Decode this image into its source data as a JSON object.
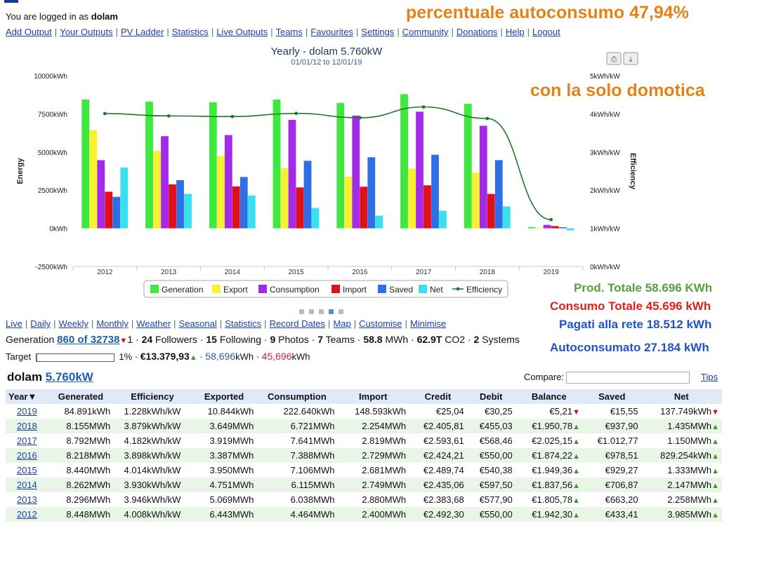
{
  "header": {
    "logged_prefix": "You are logged in as",
    "username": "dolam",
    "nav": [
      "Add Output",
      "Your Outputs",
      "PV Ladder",
      "Statistics",
      "Live Outputs",
      "Teams",
      "Favourites",
      "Settings",
      "Community",
      "Donations",
      "Help",
      "Logout"
    ]
  },
  "annotations": {
    "top_right": "percentuale autoconsumo 47,94%",
    "domotica": "con la solo domotica",
    "prod_totale": "Prod. Totale  58.696 KWh",
    "consumo_totale": "Consumo Totale 45.696 kWh",
    "pagati": "Pagati alla rete 18.512 kWh",
    "autoconsumato": "Autoconsumato 27.184 kWh"
  },
  "chart_data": {
    "type": "bar",
    "title": "Yearly - dolam 5.760kW",
    "subtitle": "01/01/12 to 12/01/19",
    "ylabel": "Energy",
    "ylabel_right": "Efficiency",
    "categories": [
      "2012",
      "2013",
      "2014",
      "2015",
      "2016",
      "2017",
      "2018",
      "2019"
    ],
    "ylim": [
      -2500,
      10000
    ],
    "yticks": [
      -2500,
      0,
      2500,
      5000,
      7500,
      10000
    ],
    "ytick_labels": [
      "-2500kWh",
      "0kWh",
      "2500kWh",
      "5000kWh",
      "7500kWh",
      "10000kWh"
    ],
    "y2lim": [
      0,
      5
    ],
    "y2tick_labels": [
      "0kWh/kW",
      "1kWh/kW",
      "2kWh/kW",
      "3kWh/kW",
      "4kWh/kW",
      "5kWh/kW"
    ],
    "series": [
      {
        "name": "Generation",
        "color": "#3ee83e",
        "values": [
          8448,
          8296,
          8262,
          8440,
          8218,
          8792,
          8155,
          85
        ]
      },
      {
        "name": "Export",
        "color": "#f7f033",
        "values": [
          6443,
          5069,
          4751,
          3950,
          3387,
          3919,
          3649,
          11
        ]
      },
      {
        "name": "Consumption",
        "color": "#a32ae8",
        "values": [
          4464,
          6038,
          6115,
          7106,
          7388,
          7641,
          6721,
          223
        ]
      },
      {
        "name": "Import",
        "color": "#e0101a",
        "values": [
          2400,
          2880,
          2749,
          2681,
          2729,
          2819,
          2254,
          149
        ]
      },
      {
        "name": "Saved",
        "color": "#2e6fe8",
        "values": [
          2064,
          3158,
          3366,
          4425,
          4659,
          4822,
          4467,
          74
        ]
      },
      {
        "name": "Net",
        "color": "#39e0f0",
        "values": [
          3985,
          2258,
          2147,
          1333,
          829,
          1150,
          1435,
          -138
        ]
      }
    ],
    "line_series": {
      "name": "Efficiency",
      "color": "#1e7a2a",
      "axis": "right",
      "values": [
        4.008,
        3.946,
        3.93,
        4.014,
        3.898,
        4.182,
        3.879,
        1.228
      ]
    },
    "legend_position": "bottom-center",
    "grid": false
  },
  "subnav": [
    "Live",
    "Daily",
    "Weekly",
    "Monthly",
    "Weather",
    "Seasonal",
    "Statistics",
    "Record Dates",
    "Map",
    "Customise",
    "Minimise"
  ],
  "genline": {
    "label": "Generation",
    "rank": "860",
    "of_total": "of 32738",
    "rank_change": "1",
    "followers_n": "24",
    "followers": "Followers",
    "following_n": "15",
    "following": "Following",
    "photos_n": "9",
    "photos": "Photos",
    "teams_n": "7",
    "teams": "Teams",
    "mwh": "58.8",
    "mwh_unit": "MWh",
    "co2": "62.9T",
    "co2_unit": "CO2",
    "systems_n": "2",
    "systems": "Systems"
  },
  "targetline": {
    "label": "Target",
    "progress_fraction": 0.01,
    "pct": "1%",
    "money": "€13.379,93",
    "gen": "58,696",
    "gen_unit": "kWh",
    "cons": "45,696",
    "cons_unit": "kWh"
  },
  "system": {
    "name": "dolam",
    "size": "5.760kW"
  },
  "compare": {
    "label": "Compare:",
    "value": "",
    "tips": "Tips"
  },
  "table": {
    "headers": [
      "Year▼",
      "Generated",
      "Efficiency",
      "Exported",
      "Consumption",
      "Import",
      "Credit",
      "Debit",
      "Balance",
      "Saved",
      "Net"
    ],
    "rows": [
      {
        "year": "2019",
        "generated": "84.891kWh",
        "efficiency": "1.228kWh/kW",
        "exported": "10.844kWh",
        "consumption": "222.640kWh",
        "import": "148.593kWh",
        "credit": "€25,04",
        "debit": "€30,25",
        "balance": "€5,21",
        "bal_trend": "down",
        "saved": "€15,55",
        "net": "137.749kWh",
        "net_trend": "down"
      },
      {
        "year": "2018",
        "generated": "8.155MWh",
        "efficiency": "3.879kWh/kW",
        "exported": "3.649MWh",
        "consumption": "6.721MWh",
        "import": "2.254MWh",
        "credit": "€2.405,81",
        "debit": "€455,03",
        "balance": "€1.950,78",
        "bal_trend": "up",
        "saved": "€937,90",
        "net": "1.435MWh",
        "net_trend": "up"
      },
      {
        "year": "2017",
        "generated": "8.792MWh",
        "efficiency": "4.182kWh/kW",
        "exported": "3.919MWh",
        "consumption": "7.641MWh",
        "import": "2.819MWh",
        "credit": "€2.593,61",
        "debit": "€568,46",
        "balance": "€2.025,15",
        "bal_trend": "up",
        "saved": "€1.012,77",
        "net": "1.150MWh",
        "net_trend": "up"
      },
      {
        "year": "2016",
        "generated": "8.218MWh",
        "efficiency": "3.898kWh/kW",
        "exported": "3.387MWh",
        "consumption": "7.388MWh",
        "import": "2.729MWh",
        "credit": "€2.424,21",
        "debit": "€550,00",
        "balance": "€1.874,22",
        "bal_trend": "up",
        "saved": "€978,51",
        "net": "829.254kWh",
        "net_trend": "up"
      },
      {
        "year": "2015",
        "generated": "8.440MWh",
        "efficiency": "4.014kWh/kW",
        "exported": "3.950MWh",
        "consumption": "7.106MWh",
        "import": "2.681MWh",
        "credit": "€2.489,74",
        "debit": "€540,38",
        "balance": "€1.949,36",
        "bal_trend": "up",
        "saved": "€929,27",
        "net": "1.333MWh",
        "net_trend": "up"
      },
      {
        "year": "2014",
        "generated": "8.262MWh",
        "efficiency": "3.930kWh/kW",
        "exported": "4.751MWh",
        "consumption": "6.115MWh",
        "import": "2.749MWh",
        "credit": "€2.435,06",
        "debit": "€597,50",
        "balance": "€1.837,56",
        "bal_trend": "up",
        "saved": "€706,87",
        "net": "2.147MWh",
        "net_trend": "up"
      },
      {
        "year": "2013",
        "generated": "8.296MWh",
        "efficiency": "3.946kWh/kW",
        "exported": "5.069MWh",
        "consumption": "6.038MWh",
        "import": "2.880MWh",
        "credit": "€2.383,68",
        "debit": "€577,90",
        "balance": "€1.805,78",
        "bal_trend": "up",
        "saved": "€663,20",
        "net": "2.258MWh",
        "net_trend": "up"
      },
      {
        "year": "2012",
        "generated": "8.448MWh",
        "efficiency": "4.008kWh/kW",
        "exported": "6.443MWh",
        "consumption": "4.464MWh",
        "import": "2.400MWh",
        "credit": "€2.492,30",
        "debit": "€550,00",
        "balance": "€1.942,30",
        "bal_trend": "up",
        "saved": "€433,41",
        "net": "3.985MWh",
        "net_trend": "up"
      }
    ]
  }
}
